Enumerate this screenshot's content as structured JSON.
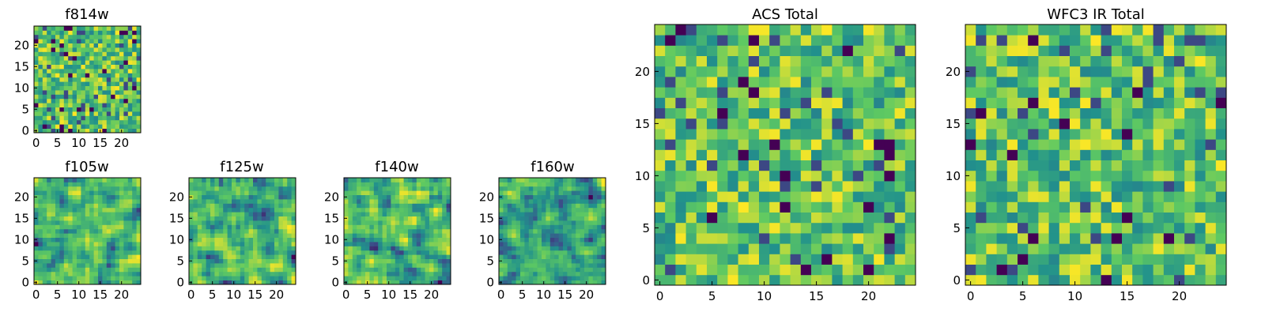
{
  "chart_data": [
    {
      "type": "heatmap",
      "title": "f814w",
      "xticks": [
        0,
        5,
        10,
        15,
        20
      ],
      "yticks": [
        0,
        5,
        10,
        15,
        20
      ],
      "xlim": [
        0,
        25
      ],
      "ylim": [
        0,
        25
      ],
      "n": 25,
      "mode": "noise",
      "seed": 814,
      "grid": false
    },
    {
      "type": "heatmap",
      "title": "f105w",
      "xticks": [
        0,
        5,
        10,
        15,
        20
      ],
      "yticks": [
        0,
        5,
        10,
        15,
        20
      ],
      "xlim": [
        0,
        25
      ],
      "ylim": [
        0,
        25
      ],
      "n": 25,
      "mode": "smooth",
      "seed": 105,
      "grid": false
    },
    {
      "type": "heatmap",
      "title": "f125w",
      "xticks": [
        0,
        5,
        10,
        15,
        20
      ],
      "yticks": [
        0,
        5,
        10,
        15,
        20
      ],
      "xlim": [
        0,
        25
      ],
      "ylim": [
        0,
        25
      ],
      "n": 25,
      "mode": "smooth",
      "seed": 125,
      "grid": false
    },
    {
      "type": "heatmap",
      "title": "f140w",
      "xticks": [
        0,
        5,
        10,
        15,
        20
      ],
      "yticks": [
        0,
        5,
        10,
        15,
        20
      ],
      "xlim": [
        0,
        25
      ],
      "ylim": [
        0,
        25
      ],
      "n": 25,
      "mode": "smooth",
      "seed": 140,
      "grid": false
    },
    {
      "type": "heatmap",
      "title": "f160w",
      "xticks": [
        0,
        5,
        10,
        15,
        20
      ],
      "yticks": [
        0,
        5,
        10,
        15,
        20
      ],
      "xlim": [
        0,
        25
      ],
      "ylim": [
        0,
        25
      ],
      "n": 25,
      "mode": "smooth",
      "seed": 160,
      "grid": false
    },
    {
      "type": "heatmap",
      "title": "ACS Total",
      "xticks": [
        0,
        5,
        10,
        15,
        20
      ],
      "yticks": [
        0,
        5,
        10,
        15,
        20
      ],
      "xlim": [
        0,
        25
      ],
      "ylim": [
        0,
        25
      ],
      "n": 25,
      "mode": "noise",
      "seed": 1001,
      "grid": false
    },
    {
      "type": "heatmap",
      "title": "WFC3 IR Total",
      "xticks": [
        0,
        5,
        10,
        15,
        20
      ],
      "yticks": [
        0,
        5,
        10,
        15,
        20
      ],
      "xlim": [
        0,
        25
      ],
      "ylim": [
        0,
        25
      ],
      "n": 25,
      "mode": "noise",
      "seed": 2002,
      "grid": false
    }
  ],
  "colormap": [
    "#440154",
    "#3b528b",
    "#21918c",
    "#5ec962",
    "#fde725"
  ]
}
